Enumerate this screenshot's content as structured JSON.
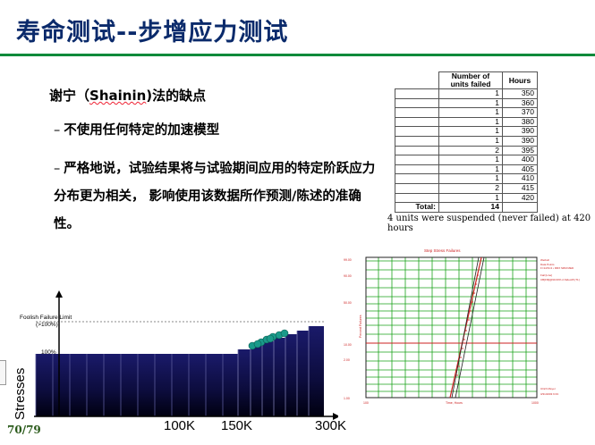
{
  "slide": {
    "title": "寿命测试--步增应力测试",
    "heading_prefix": "谢宁（",
    "heading_name": "Shainin",
    "heading_suffix": ")法的缺点",
    "bullet1": "不使用任何特定的加速模型",
    "bullet2": "严格地说，试验结果将与试验期间应用的特定阶跃应力分布更为相关， 影响使用该数据所作预测/陈述的准确性。",
    "bullet_dash": "–",
    "page_number": "70/79"
  },
  "table": {
    "header_units": "Number of units failed",
    "header_hours": "Hours",
    "rows": [
      {
        "units": "1",
        "hours": "350"
      },
      {
        "units": "1",
        "hours": "360"
      },
      {
        "units": "1",
        "hours": "370"
      },
      {
        "units": "1",
        "hours": "380"
      },
      {
        "units": "1",
        "hours": "390"
      },
      {
        "units": "1",
        "hours": "390"
      },
      {
        "units": "2",
        "hours": "395"
      },
      {
        "units": "1",
        "hours": "400"
      },
      {
        "units": "1",
        "hours": "405"
      },
      {
        "units": "1",
        "hours": "410"
      },
      {
        "units": "2",
        "hours": "415"
      },
      {
        "units": "1",
        "hours": "420"
      }
    ],
    "total_label": "Total:",
    "total_value": "14",
    "note": "4 units were suspended (never failed) at 420 hours"
  },
  "stress_chart": {
    "ylabel": "Stresses",
    "foolish_label": "Foolish Failure Limit",
    "foolish_pct": "(>100%)",
    "pct100": "100%",
    "ticks": [
      "100K",
      "150K",
      "300K"
    ],
    "bar_color": "#111155",
    "failure_color": "#1a9a8a"
  },
  "step_chart": {
    "title": "Step Stress Failures",
    "ylabel": "Percent Failures",
    "xlabel": "Time, Hours",
    "yticks": [
      "99.00",
      "90.00",
      "50.00",
      "10.00",
      "2.00",
      "1.00"
    ],
    "xticks": [
      "100",
      "1000"
    ],
    "legend": [
      "Weibull",
      "Data Points",
      "F=14/S=4 • RRX SRM MED",
      "Fail [Line]",
      "CB[FM]@90.00% 2-Sided-B [T1]"
    ],
    "footer": [
      "Ulrich Meyer",
      "3/31/2003 9:33"
    ],
    "grid_color": "#1aa31a",
    "line_color": "#cc2222"
  }
}
